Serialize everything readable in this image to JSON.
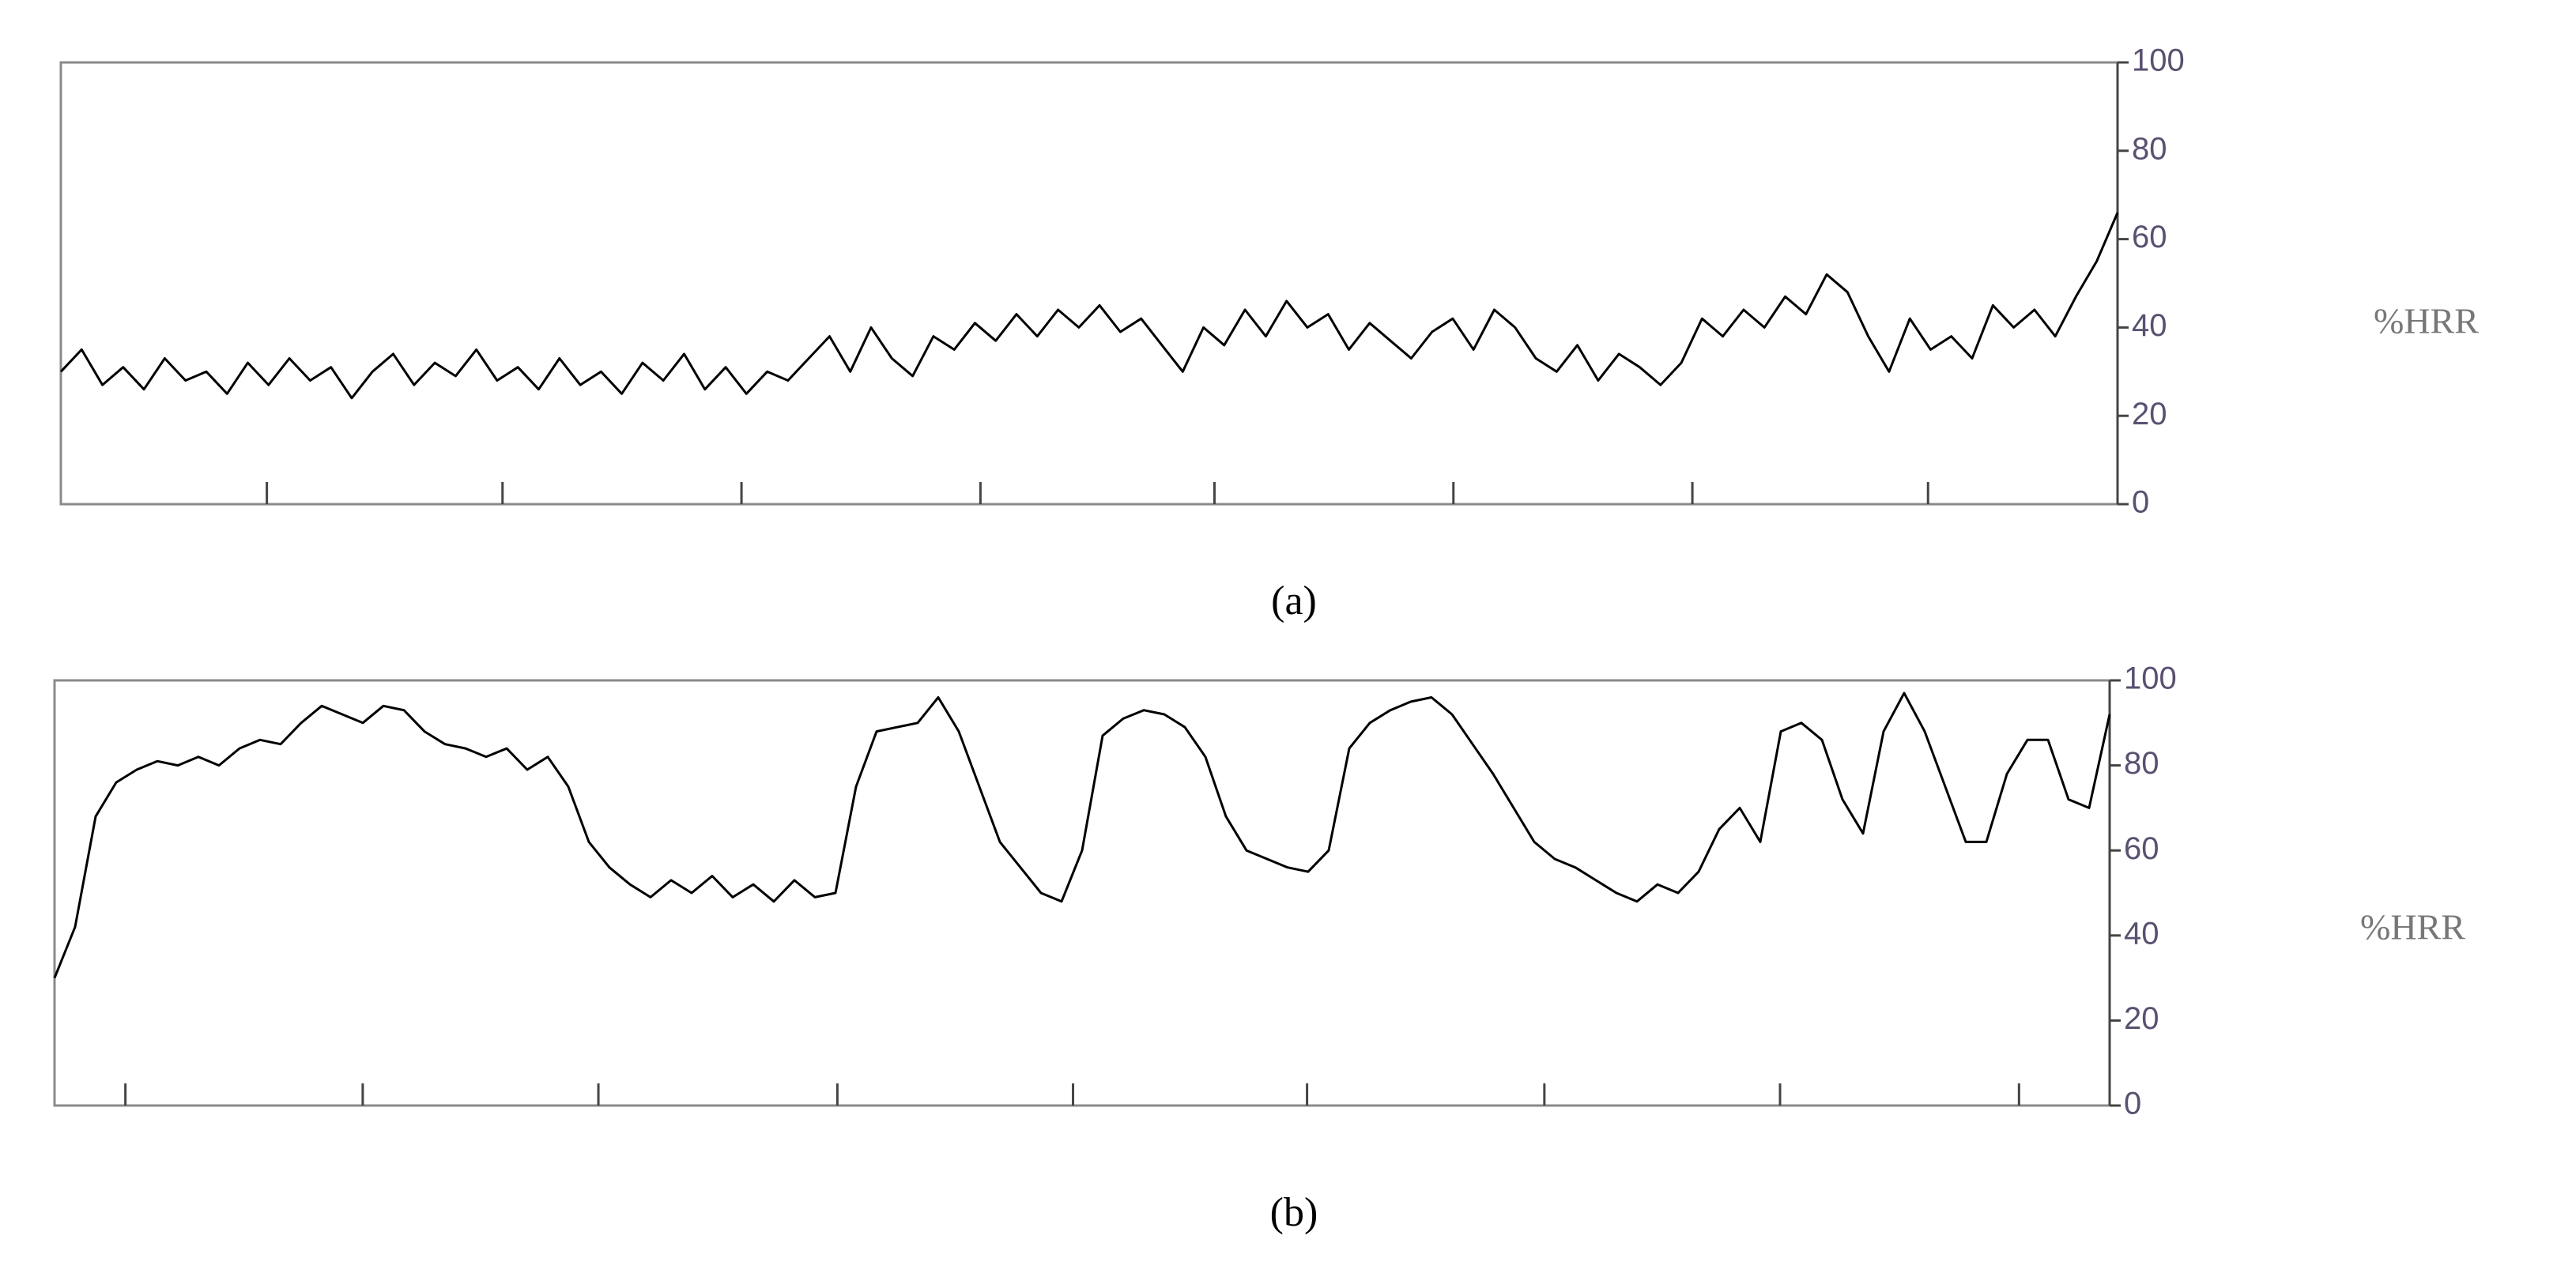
{
  "chart_data": [
    {
      "type": "line",
      "label": "(a)",
      "y_label": "%HRR",
      "color": "#000000",
      "ylim": [
        0,
        100
      ],
      "yticks": [
        0,
        20,
        40,
        60,
        80,
        100
      ],
      "values": [
        30,
        35,
        27,
        31,
        26,
        33,
        28,
        30,
        25,
        32,
        27,
        33,
        28,
        31,
        24,
        30,
        34,
        27,
        32,
        29,
        35,
        28,
        31,
        26,
        33,
        27,
        30,
        25,
        32,
        28,
        34,
        26,
        31,
        25,
        30,
        28,
        33,
        38,
        30,
        40,
        33,
        29,
        38,
        35,
        41,
        37,
        43,
        38,
        44,
        40,
        45,
        39,
        42,
        36,
        30,
        40,
        36,
        44,
        38,
        46,
        40,
        43,
        35,
        41,
        37,
        33,
        39,
        42,
        35,
        44,
        40,
        33,
        30,
        36,
        28,
        34,
        31,
        27,
        32,
        42,
        38,
        44,
        40,
        47,
        43,
        52,
        48,
        38,
        30,
        42,
        35,
        38,
        33,
        45,
        40,
        44,
        38,
        47,
        55,
        66
      ]
    },
    {
      "type": "line",
      "label": "(b)",
      "y_label": "%HRR",
      "color": "#000000",
      "ylim": [
        0,
        100
      ],
      "yticks": [
        0,
        20,
        40,
        60,
        80,
        100
      ],
      "values": [
        30,
        42,
        68,
        76,
        79,
        81,
        80,
        82,
        80,
        84,
        86,
        85,
        90,
        94,
        92,
        90,
        94,
        93,
        88,
        85,
        84,
        82,
        84,
        79,
        82,
        75,
        62,
        56,
        52,
        49,
        53,
        50,
        54,
        49,
        52,
        48,
        53,
        49,
        50,
        75,
        88,
        89,
        90,
        96,
        88,
        75,
        62,
        56,
        50,
        48,
        60,
        87,
        91,
        93,
        92,
        89,
        82,
        68,
        60,
        58,
        56,
        55,
        60,
        84,
        90,
        93,
        95,
        96,
        92,
        85,
        78,
        70,
        62,
        58,
        56,
        53,
        50,
        48,
        52,
        50,
        55,
        65,
        70,
        62,
        88,
        90,
        86,
        72,
        64,
        88,
        97,
        88,
        75,
        62,
        62,
        78,
        86,
        86,
        72,
        70,
        92
      ]
    }
  ]
}
